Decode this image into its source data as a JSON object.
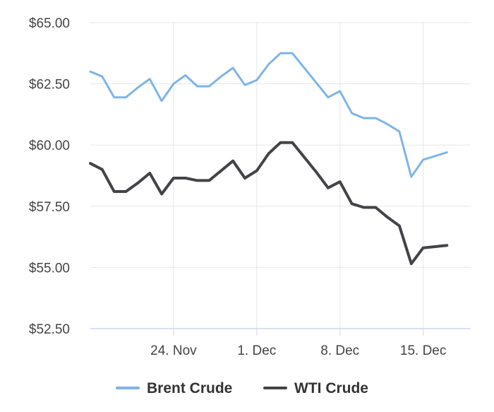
{
  "chart_data": {
    "type": "line",
    "title": "",
    "xlabel": "",
    "ylabel": "",
    "x_start": "2025-11-17",
    "x_end": "2025-12-19",
    "ylim": [
      52.5,
      65.0
    ],
    "y_ticks": [
      {
        "value": 52.5,
        "label": "$52.50"
      },
      {
        "value": 55.0,
        "label": "$55.00"
      },
      {
        "value": 57.5,
        "label": "$57.50"
      },
      {
        "value": 60.0,
        "label": "$60.00"
      },
      {
        "value": 62.5,
        "label": "$62.50"
      },
      {
        "value": 65.0,
        "label": "$65.00"
      }
    ],
    "x_ticks": [
      {
        "date": "2025-11-24",
        "label": "24. Nov"
      },
      {
        "date": "2025-12-01",
        "label": "1. Dec"
      },
      {
        "date": "2025-12-08",
        "label": "8. Dec"
      },
      {
        "date": "2025-12-15",
        "label": "15. Dec"
      }
    ],
    "grid": true,
    "legend": "bottom",
    "series": [
      {
        "name": "Brent Crude",
        "color": "#7cb5ec",
        "points": [
          {
            "x": "2025-11-17",
            "y": 63.0
          },
          {
            "x": "2025-11-18",
            "y": 62.8
          },
          {
            "x": "2025-11-19",
            "y": 61.95
          },
          {
            "x": "2025-11-20",
            "y": 61.95
          },
          {
            "x": "2025-11-21",
            "y": 62.35
          },
          {
            "x": "2025-11-22",
            "y": 62.7
          },
          {
            "x": "2025-11-23",
            "y": 61.8
          },
          {
            "x": "2025-11-24",
            "y": 62.5
          },
          {
            "x": "2025-11-25",
            "y": 62.85
          },
          {
            "x": "2025-11-26",
            "y": 62.4
          },
          {
            "x": "2025-11-27",
            "y": 62.4
          },
          {
            "x": "2025-11-28",
            "y": 62.8
          },
          {
            "x": "2025-11-29",
            "y": 63.15
          },
          {
            "x": "2025-11-30",
            "y": 62.45
          },
          {
            "x": "2025-12-01",
            "y": 62.65
          },
          {
            "x": "2025-12-02",
            "y": 63.3
          },
          {
            "x": "2025-12-03",
            "y": 63.75
          },
          {
            "x": "2025-12-04",
            "y": 63.75
          },
          {
            "x": "2025-12-05",
            "y": 63.15
          },
          {
            "x": "2025-12-06",
            "y": 62.55
          },
          {
            "x": "2025-12-07",
            "y": 61.95
          },
          {
            "x": "2025-12-08",
            "y": 62.2
          },
          {
            "x": "2025-12-09",
            "y": 61.3
          },
          {
            "x": "2025-12-10",
            "y": 61.1
          },
          {
            "x": "2025-12-11",
            "y": 61.1
          },
          {
            "x": "2025-12-12",
            "y": 60.85
          },
          {
            "x": "2025-12-13",
            "y": 60.55
          },
          {
            "x": "2025-12-14",
            "y": 58.7
          },
          {
            "x": "2025-12-15",
            "y": 59.4
          },
          {
            "x": "2025-12-16",
            "y": 59.55
          },
          {
            "x": "2025-12-17",
            "y": 59.7
          }
        ]
      },
      {
        "name": "WTI Crude",
        "color": "#434348",
        "points": [
          {
            "x": "2025-11-17",
            "y": 59.25
          },
          {
            "x": "2025-11-18",
            "y": 59.0
          },
          {
            "x": "2025-11-19",
            "y": 58.1
          },
          {
            "x": "2025-11-20",
            "y": 58.1
          },
          {
            "x": "2025-11-21",
            "y": 58.45
          },
          {
            "x": "2025-11-22",
            "y": 58.85
          },
          {
            "x": "2025-11-23",
            "y": 58.0
          },
          {
            "x": "2025-11-24",
            "y": 58.65
          },
          {
            "x": "2025-11-25",
            "y": 58.65
          },
          {
            "x": "2025-11-26",
            "y": 58.55
          },
          {
            "x": "2025-11-27",
            "y": 58.55
          },
          {
            "x": "2025-11-28",
            "y": 58.95
          },
          {
            "x": "2025-11-29",
            "y": 59.35
          },
          {
            "x": "2025-11-30",
            "y": 58.65
          },
          {
            "x": "2025-12-01",
            "y": 58.95
          },
          {
            "x": "2025-12-02",
            "y": 59.65
          },
          {
            "x": "2025-12-03",
            "y": 60.1
          },
          {
            "x": "2025-12-04",
            "y": 60.1
          },
          {
            "x": "2025-12-05",
            "y": 59.5
          },
          {
            "x": "2025-12-06",
            "y": 58.9
          },
          {
            "x": "2025-12-07",
            "y": 58.25
          },
          {
            "x": "2025-12-08",
            "y": 58.5
          },
          {
            "x": "2025-12-09",
            "y": 57.6
          },
          {
            "x": "2025-12-10",
            "y": 57.45
          },
          {
            "x": "2025-12-11",
            "y": 57.45
          },
          {
            "x": "2025-12-12",
            "y": 57.05
          },
          {
            "x": "2025-12-13",
            "y": 56.7
          },
          {
            "x": "2025-12-14",
            "y": 55.15
          },
          {
            "x": "2025-12-15",
            "y": 55.8
          },
          {
            "x": "2025-12-16",
            "y": 55.85
          },
          {
            "x": "2025-12-17",
            "y": 55.9
          }
        ]
      }
    ]
  }
}
